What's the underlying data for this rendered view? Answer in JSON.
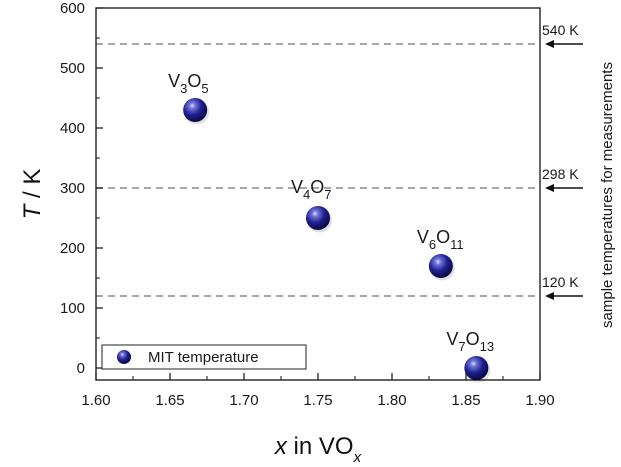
{
  "chart_data": {
    "type": "scatter",
    "xlim": [
      1.6,
      1.9
    ],
    "ylim": [
      -20,
      600
    ],
    "xticks": [
      1.6,
      1.65,
      1.7,
      1.75,
      1.8,
      1.85,
      1.9
    ],
    "yticks": [
      0,
      100,
      200,
      300,
      400,
      500,
      600
    ],
    "xtick_labels": [
      "1.60",
      "1.65",
      "1.70",
      "1.75",
      "1.80",
      "1.85",
      "1.90"
    ],
    "ytick_labels": [
      "0",
      "100",
      "200",
      "300",
      "400",
      "500",
      "600"
    ],
    "xlabel": {
      "italic": "x",
      "main": " in VO",
      "sub": "x"
    },
    "ylabel": {
      "italic": "T",
      "main": " / K"
    },
    "series": [
      {
        "name": "MIT temperature",
        "color": "#1f1f8f",
        "points": [
          {
            "x": 1.667,
            "y": 430,
            "label_base": [
              "V",
              "O"
            ],
            "label_sub": [
              "3",
              "5"
            ]
          },
          {
            "x": 1.75,
            "y": 250,
            "label_base": [
              "V",
              "O"
            ],
            "label_sub": [
              "4",
              "7"
            ]
          },
          {
            "x": 1.833,
            "y": 170,
            "label_base": [
              "V",
              "O"
            ],
            "label_sub": [
              "6",
              "11"
            ]
          },
          {
            "x": 1.857,
            "y": 0,
            "label_base": [
              "V",
              "O"
            ],
            "label_sub": [
              "7",
              "13"
            ]
          }
        ]
      }
    ],
    "reference_lines": [
      {
        "y": 540,
        "label": "540 K"
      },
      {
        "y": 300,
        "label": "298 K"
      },
      {
        "y": 120,
        "label": "120 K"
      }
    ],
    "right_note": "sample temperatures for measurements",
    "legend": {
      "position": "bottom-left",
      "entries": [
        "MIT temperature"
      ]
    },
    "grid": false
  }
}
